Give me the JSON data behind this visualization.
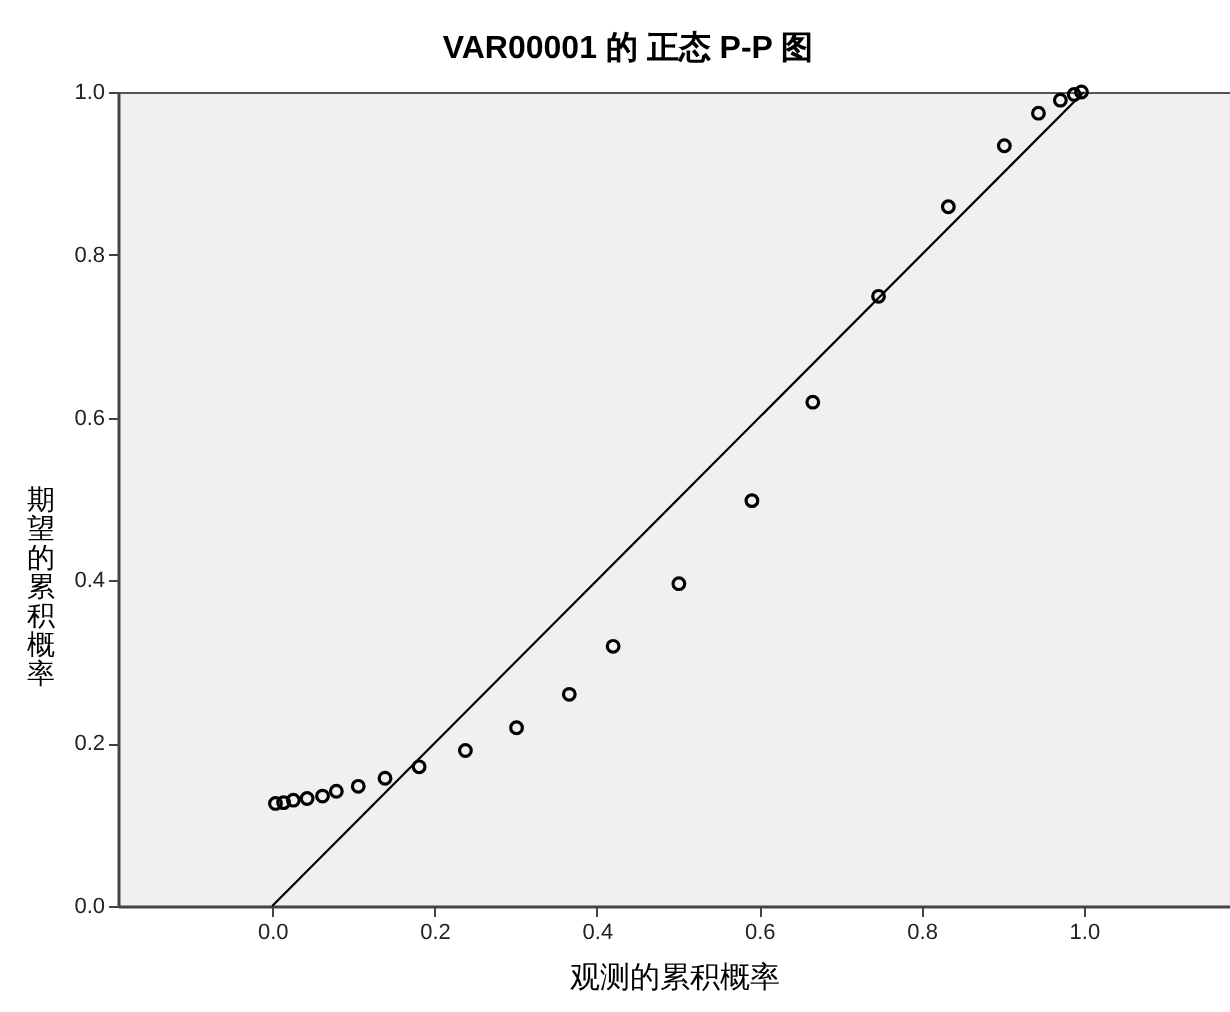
{
  "chart_data": {
    "type": "scatter",
    "title": "VAR00001 的 正态 P-P 图",
    "xlabel": "观测的累积概率",
    "ylabel": "期望的累积概率",
    "xlim": [
      -0.19,
      1.18
    ],
    "ylim": [
      0,
      1
    ],
    "xticks": [
      {
        "value": 0,
        "label": "0.0"
      },
      0.2,
      0.4,
      0.6,
      0.8,
      {
        "value": 1,
        "label": "1.0"
      }
    ],
    "yticks": [
      {
        "value": 0,
        "label": "0.0"
      },
      0.2,
      0.4,
      0.6,
      0.8,
      {
        "value": 1,
        "label": "1.0"
      }
    ],
    "series": [
      {
        "color": "#000000",
        "marker": "circle",
        "x": [
          0.004,
          0.014,
          0.026,
          0.043,
          0.062,
          0.079,
          0.106,
          0.139,
          0.181,
          0.238,
          0.301,
          0.366,
          0.42,
          0.501,
          0.591,
          0.666,
          0.747,
          0.833,
          0.902,
          0.944,
          0.971,
          0.988,
          0.997
        ],
        "values": [
          0.126,
          0.127,
          0.13,
          0.132,
          0.135,
          0.141,
          0.147,
          0.157,
          0.171,
          0.191,
          0.219,
          0.26,
          0.319,
          0.396,
          0.498,
          0.619,
          0.749,
          0.859,
          0.934,
          0.974,
          0.99,
          0.997,
          1.0
        ]
      },
      {
        "type": "line",
        "color": "#000000",
        "x": [
          0,
          1
        ],
        "values": [
          0,
          1
        ]
      }
    ]
  }
}
